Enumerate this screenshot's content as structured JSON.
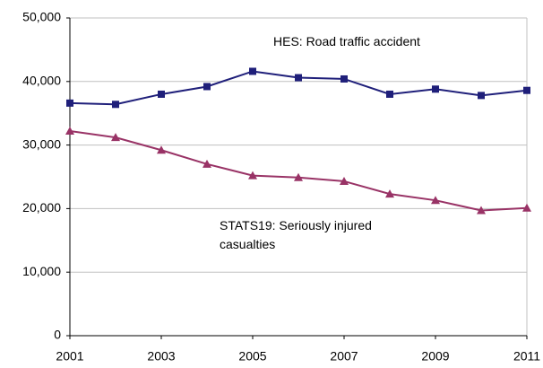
{
  "chart_data": {
    "type": "line",
    "x": [
      2001,
      2002,
      2003,
      2004,
      2005,
      2006,
      2007,
      2008,
      2009,
      2010,
      2011
    ],
    "xlim": [
      2001,
      2011
    ],
    "xticks": [
      2001,
      2003,
      2005,
      2007,
      2009,
      2011
    ],
    "ylim": [
      0,
      50000
    ],
    "yticks": [
      0,
      {
        "value": 10000,
        "label": "10,000"
      },
      {
        "value": 20000,
        "label": "20,000"
      },
      {
        "value": 30000,
        "label": "30,000"
      },
      {
        "value": 40000,
        "label": "40,000"
      },
      {
        "value": 50000,
        "label": "50,000"
      }
    ],
    "grid": true,
    "series": [
      {
        "name": "HES: Road traffic accident",
        "color": "#1f1f7a",
        "marker": "square",
        "values": [
          36600,
          36400,
          38000,
          39200,
          41600,
          40600,
          40400,
          38000,
          38800,
          37800,
          38600
        ]
      },
      {
        "name": "STATS19: Seriously injured casualties",
        "color": "#993366",
        "marker": "triangle",
        "values": [
          32200,
          31200,
          29200,
          27000,
          25200,
          24900,
          24300,
          22300,
          21300,
          19700,
          20100
        ]
      }
    ]
  }
}
